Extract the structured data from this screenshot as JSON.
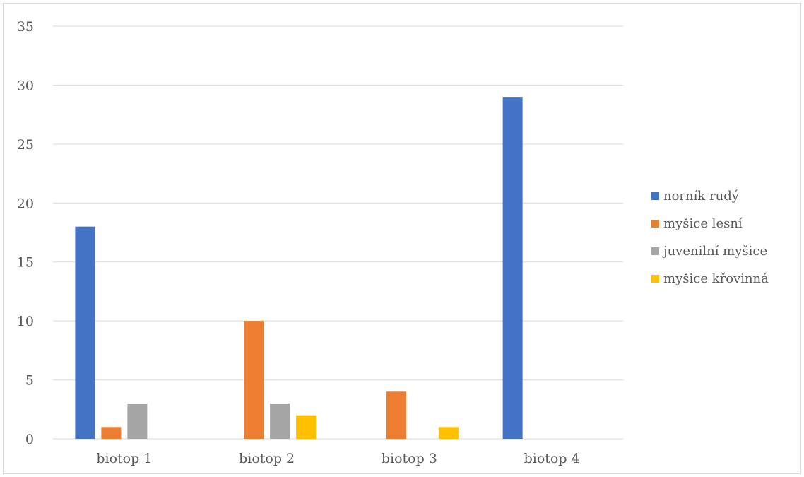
{
  "chart_data": {
    "type": "bar",
    "title": "",
    "xlabel": "",
    "ylabel": "",
    "categories": [
      "biotop 1",
      "biotop 2",
      "biotop 3",
      "biotop 4"
    ],
    "ylim": [
      0,
      35
    ],
    "yticks": [
      "0",
      "5",
      "10",
      "15",
      "20",
      "25",
      "30",
      "35"
    ],
    "grid": true,
    "legend_position": "right",
    "series": [
      {
        "name": "norník rudý",
        "color": "#4472C4",
        "values": [
          18,
          0,
          0,
          29
        ]
      },
      {
        "name": "myšice lesní",
        "color": "#ED7D31",
        "values": [
          1,
          10,
          4,
          0
        ]
      },
      {
        "name": "juvenilní myšice",
        "color": "#A5A5A5",
        "values": [
          3,
          3,
          0,
          0
        ]
      },
      {
        "name": "myšice křovinná",
        "color": "#FFC000",
        "values": [
          0,
          2,
          1,
          0
        ]
      }
    ]
  }
}
